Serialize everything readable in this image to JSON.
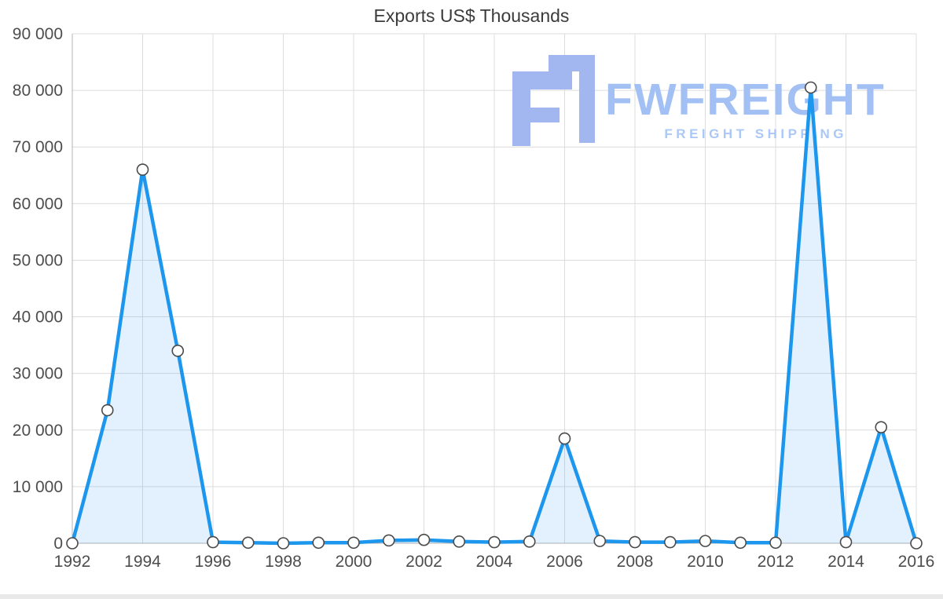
{
  "watermark": {
    "brand": "FWFREIGHT",
    "tagline": "FREIGHT SHIPPING",
    "colors": {
      "mark": "#a2b6f0",
      "brand": "#a3c0f4",
      "tagline": "#abc8f7"
    }
  },
  "chart_data": {
    "type": "area",
    "title": "Exports US$ Thousands",
    "xlabel": "",
    "ylabel": "",
    "x": [
      1992,
      1993,
      1994,
      1995,
      1996,
      1997,
      1998,
      1999,
      2000,
      2001,
      2002,
      2003,
      2004,
      2005,
      2006,
      2007,
      2008,
      2009,
      2010,
      2011,
      2012,
      2013,
      2014,
      2015,
      2016
    ],
    "values": [
      0,
      23500,
      66000,
      34000,
      200,
      100,
      0,
      100,
      100,
      500,
      600,
      300,
      200,
      300,
      18500,
      400,
      200,
      200,
      400,
      100,
      100,
      80500,
      200,
      20500,
      0
    ],
    "ylim": [
      0,
      90000
    ],
    "grid": true,
    "legend": "none",
    "yticks": {
      "values": [
        0,
        10000,
        20000,
        30000,
        40000,
        50000,
        60000,
        70000,
        80000,
        90000
      ],
      "labels": [
        "0",
        "10 000",
        "20 000",
        "30 000",
        "40 000",
        "50 000",
        "60 000",
        "70 000",
        "80 000",
        "90 000"
      ]
    },
    "xticks": {
      "values": [
        1992,
        1994,
        1996,
        1998,
        2000,
        2002,
        2004,
        2006,
        2008,
        2010,
        2012,
        2014,
        2016
      ],
      "labels": [
        "1992",
        "1994",
        "1996",
        "1998",
        "2000",
        "2002",
        "2004",
        "2006",
        "2008",
        "2010",
        "2012",
        "2014",
        "2016"
      ]
    },
    "colors": {
      "line": "#1d96ee",
      "fill": "rgba(29,150,238,0.13)",
      "marker_fill": "#ffffff",
      "marker_stroke": "#4a4a4a",
      "grid": "#dcdcdc",
      "axis": "#b3b3b3",
      "axis_text": "#4d4d4d"
    }
  }
}
